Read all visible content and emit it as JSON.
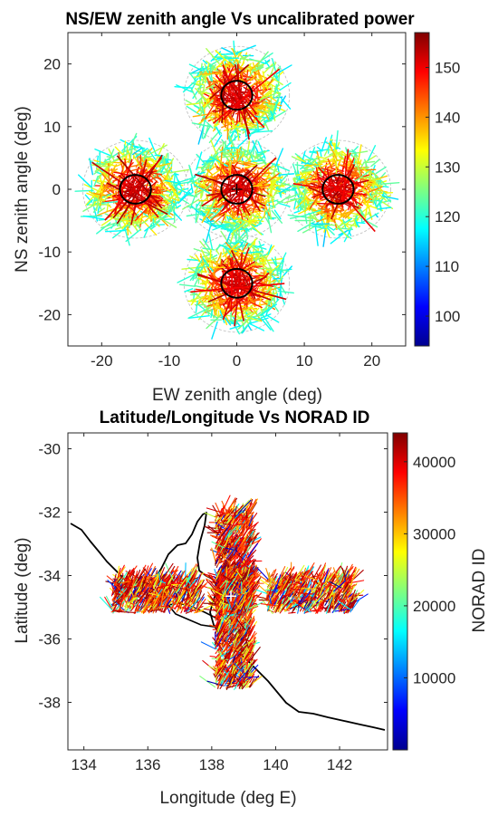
{
  "chart_data": [
    {
      "type": "scatter",
      "title": "NS/EW zenith angle Vs uncalibrated power",
      "xlabel": "EW zenith angle (deg)",
      "ylabel": "NS zenith angle (deg)",
      "xlim": [
        -25,
        25
      ],
      "ylim": [
        -25,
        25
      ],
      "x_ticks": [
        -20,
        -10,
        0,
        10,
        20
      ],
      "y_ticks": [
        -20,
        -10,
        0,
        10,
        20
      ],
      "grid": false,
      "colorbar": {
        "label": "",
        "range": [
          94,
          157
        ],
        "ticks": [
          100,
          110,
          120,
          130,
          140,
          150
        ],
        "colormap": "jet"
      },
      "beams": [
        {
          "x": 0,
          "y": 15,
          "circle_radius": 2.3,
          "outer_radius": 7.8
        },
        {
          "x": -15,
          "y": 0,
          "circle_radius": 2.3,
          "outer_radius": 7.8
        },
        {
          "x": 0,
          "y": 0,
          "circle_radius": 2.3,
          "outer_radius": 7.8
        },
        {
          "x": 15,
          "y": 0,
          "circle_radius": 2.3,
          "outer_radius": 7.8
        },
        {
          "x": 0,
          "y": -15,
          "circle_radius": 2.3,
          "outer_radius": 7.8
        }
      ],
      "marker": {
        "x": 0,
        "y": 0,
        "symbol": "+"
      }
    },
    {
      "type": "scatter",
      "title": "Latitude/Longitude Vs NORAD ID",
      "xlabel": "Longitude (deg E)",
      "ylabel": "Latitude (deg)",
      "xlim": [
        133.5,
        143.5
      ],
      "ylim": [
        -39.5,
        -29.5
      ],
      "x_ticks": [
        134,
        136,
        138,
        140,
        142
      ],
      "y_ticks": [
        -38,
        -36,
        -34,
        -32,
        -30
      ],
      "grid": false,
      "colorbar": {
        "label": "NORAD ID",
        "range": [
          0,
          44000
        ],
        "ticks": [
          10000,
          20000,
          30000,
          40000
        ],
        "colormap": "jet"
      },
      "clusters": [
        {
          "lon": 138.65,
          "lat": -33.3,
          "spread_lon": 0.55,
          "spread_lat": 1.3
        },
        {
          "lon": 136.2,
          "lat": -34.65,
          "spread_lon": 1.35,
          "spread_lat": 0.55
        },
        {
          "lon": 138.65,
          "lat": -34.65,
          "spread_lon": 0.55,
          "spread_lat": 0.55
        },
        {
          "lon": 141.05,
          "lat": -34.65,
          "spread_lon": 1.35,
          "spread_lat": 0.55
        },
        {
          "lon": 138.65,
          "lat": -36.3,
          "spread_lon": 0.55,
          "spread_lat": 1.3
        }
      ],
      "marker": {
        "lon": 138.6,
        "lat": -34.65,
        "symbol": "+"
      }
    }
  ]
}
